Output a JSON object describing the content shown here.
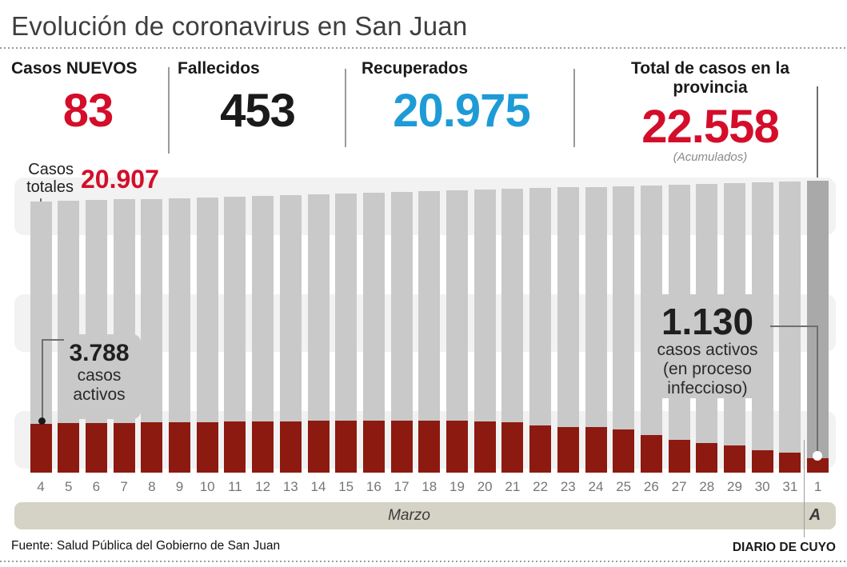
{
  "title": "Evolución de coronavirus en San Juan",
  "colors": {
    "red": "#d40e2a",
    "blue": "#1e9bd6",
    "black": "#1a1a1a",
    "bar_gray": "#c9c9c9",
    "bar_gray_dark": "#a9a9a9",
    "bar_red": "#8c1a10",
    "band_gray": "#f2f2f2",
    "month_band": "#d5d2c6"
  },
  "stats": [
    {
      "label": "Casos NUEVOS",
      "value": "83",
      "color": "#d40e2a"
    },
    {
      "label": "Fallecidos",
      "value": "453",
      "color": "#1a1a1a"
    },
    {
      "label": "Recuperados",
      "value": "20.975",
      "color": "#1e9bd6"
    },
    {
      "label": "Total de casos en la provincia",
      "value": "22.558",
      "note": "(Acumulados)",
      "color": "#d40e2a"
    }
  ],
  "annotations": {
    "totals_start": {
      "label_line1": "Casos",
      "label_line2": "totales",
      "value": "20.907"
    },
    "active_start": {
      "value": "3.788",
      "lines": [
        "casos",
        "activos"
      ]
    },
    "active_end": {
      "value": "1.130",
      "lines": [
        "casos activos",
        "(en proceso",
        "infeccioso)"
      ]
    }
  },
  "chart_data": {
    "type": "bar",
    "title": "Evolución de coronavirus en San Juan",
    "categories": [
      "4",
      "5",
      "6",
      "7",
      "8",
      "9",
      "10",
      "11",
      "12",
      "13",
      "14",
      "15",
      "16",
      "17",
      "18",
      "19",
      "20",
      "21",
      "22",
      "23",
      "24",
      "25",
      "26",
      "27",
      "28",
      "29",
      "30",
      "31",
      "1"
    ],
    "x_month_label": "Marzo",
    "x_next_month_label": "A",
    "ylabel": "",
    "xlabel": "",
    "legend_position": "annotations-inline",
    "grid": "horizontal-bands",
    "series": [
      {
        "name": "Casos totales",
        "color": "#c9c9c9",
        "first_value_label": "20.907",
        "last_value_label": "22.558",
        "values": [
          20907,
          20965,
          21023,
          21081,
          21139,
          21197,
          21255,
          21313,
          21371,
          21429,
          21487,
          21545,
          21603,
          21661,
          21719,
          21777,
          21835,
          21893,
          21951,
          22009,
          22067,
          22125,
          22183,
          22241,
          22300,
          22359,
          22417,
          22475,
          22558
        ]
      },
      {
        "name": "Casos activos (en proceso infeccioso)",
        "color": "#8c1a10",
        "first_value_label": "3.788",
        "last_value_label": "1.130",
        "values": [
          3788,
          3800,
          3830,
          3845,
          3880,
          3860,
          3900,
          3950,
          3960,
          3970,
          3985,
          4000,
          4010,
          4025,
          4040,
          3990,
          3940,
          3900,
          3650,
          3540,
          3500,
          3350,
          2900,
          2550,
          2300,
          2100,
          1750,
          1520,
          1130
        ]
      }
    ]
  },
  "footer": {
    "source": "Fuente: Salud Pública del Gobierno de San Juan",
    "credit": "DIARIO DE CUYO"
  }
}
